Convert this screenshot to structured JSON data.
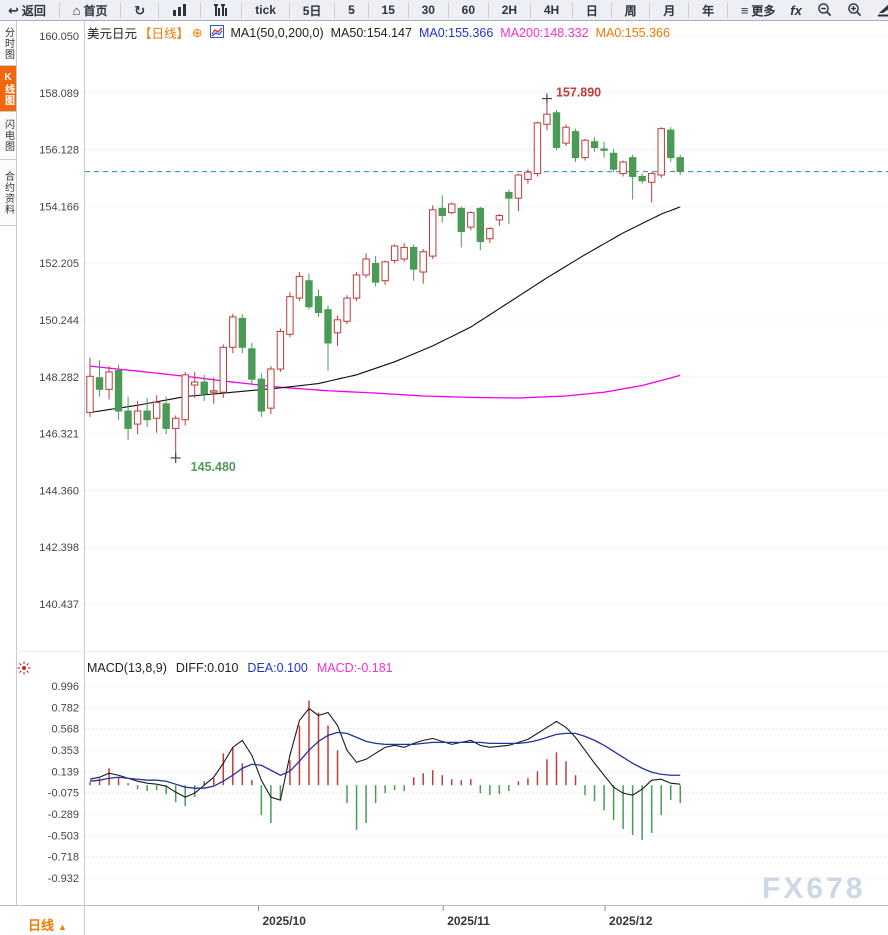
{
  "toolbar": {
    "back": "返回",
    "home": "首页",
    "periods": [
      "tick",
      "5日",
      "5",
      "15",
      "30",
      "60",
      "2H",
      "4H",
      "日",
      "周",
      "月",
      "年"
    ],
    "more": "更多",
    "fx": "fx"
  },
  "sidebar": {
    "tabs": [
      {
        "label": "分时图",
        "active": false
      },
      {
        "label": "K线图",
        "active": true
      },
      {
        "label": "闪电图",
        "active": false
      },
      {
        "label": "合约资料",
        "active": false
      }
    ]
  },
  "chart_header": {
    "symbol": "美元日元",
    "period_tag": "【日线】",
    "add_icon": "⊕",
    "ma_setting": "MA1(50,0,200,0)",
    "ma50": "MA50:154.147",
    "ma0_blue": "MA0:155.366",
    "ma200": "MA200:148.332",
    "ma0_orange": "MA0:155.366"
  },
  "macd_header": {
    "title": "MACD(13,8,9)",
    "diff": "DIFF:0.010",
    "dea": "DEA:0.100",
    "macd": "MACD:-0.181"
  },
  "bottom": {
    "period_label": "日线",
    "arrow": "▲"
  },
  "watermark": "FX678",
  "chart_data": {
    "type": "candlestick",
    "title": "美元日元 日线 (USD/JPY daily with MA50/MA200 and MACD)",
    "price_ticks": [
      "160.050",
      "158.089",
      "156.128",
      "154.166",
      "152.205",
      "150.244",
      "148.282",
      "146.321",
      "144.360",
      "142.398",
      "140.437"
    ],
    "macd_ticks": [
      "0.996",
      "0.782",
      "0.568",
      "0.353",
      "0.139",
      "-0.075",
      "-0.289",
      "-0.503",
      "-0.718",
      "-0.932"
    ],
    "x_ticks": [
      {
        "label": "2025/10",
        "index": 17.7
      },
      {
        "label": "2025/11",
        "index": 37.1
      },
      {
        "label": "2025/12",
        "index": 54.1
      }
    ],
    "current_price": 155.366,
    "high_annotation": {
      "label": "157.890",
      "price": 157.89,
      "index": 48
    },
    "low_annotation": {
      "label": "145.480",
      "price": 145.48,
      "index": 9
    },
    "candles": [
      [
        147.05,
        148.95,
        146.9,
        148.3
      ],
      [
        148.25,
        148.85,
        147.6,
        147.85
      ],
      [
        147.85,
        148.65,
        147.5,
        148.45
      ],
      [
        148.5,
        148.7,
        146.8,
        147.1
      ],
      [
        147.1,
        147.6,
        146.1,
        146.5
      ],
      [
        146.65,
        147.45,
        146.3,
        147.1
      ],
      [
        147.1,
        147.55,
        146.55,
        146.8
      ],
      [
        146.85,
        147.65,
        146.35,
        147.4
      ],
      [
        147.35,
        147.6,
        146.3,
        146.5
      ],
      [
        146.5,
        146.95,
        145.48,
        146.85
      ],
      [
        146.8,
        148.45,
        146.6,
        148.35
      ],
      [
        148.0,
        148.45,
        147.55,
        148.1
      ],
      [
        148.1,
        148.35,
        147.45,
        147.7
      ],
      [
        147.75,
        148.25,
        147.35,
        147.8
      ],
      [
        147.75,
        149.4,
        147.55,
        149.3
      ],
      [
        149.3,
        150.45,
        149.1,
        150.35
      ],
      [
        150.3,
        150.45,
        149.1,
        149.3
      ],
      [
        149.25,
        149.45,
        148.0,
        148.2
      ],
      [
        148.2,
        148.4,
        146.9,
        147.1
      ],
      [
        147.2,
        148.65,
        147.0,
        148.55
      ],
      [
        148.55,
        149.95,
        148.45,
        149.85
      ],
      [
        149.75,
        151.2,
        149.65,
        151.05
      ],
      [
        151.0,
        151.9,
        150.9,
        151.75
      ],
      [
        151.6,
        151.85,
        150.6,
        150.7
      ],
      [
        151.05,
        151.3,
        150.35,
        150.5
      ],
      [
        150.6,
        150.75,
        148.5,
        149.45
      ],
      [
        149.8,
        150.4,
        149.35,
        150.25
      ],
      [
        150.2,
        151.1,
        150.1,
        151.0
      ],
      [
        151.0,
        151.9,
        150.9,
        151.8
      ],
      [
        151.8,
        152.55,
        151.7,
        152.35
      ],
      [
        152.2,
        152.45,
        151.4,
        151.55
      ],
      [
        151.6,
        152.3,
        151.45,
        152.25
      ],
      [
        152.3,
        152.85,
        152.2,
        152.8
      ],
      [
        152.35,
        152.9,
        152.25,
        152.75
      ],
      [
        152.75,
        152.85,
        151.6,
        152.0
      ],
      [
        151.9,
        152.7,
        151.5,
        152.6
      ],
      [
        152.45,
        154.2,
        152.35,
        154.05
      ],
      [
        154.1,
        154.55,
        153.6,
        153.85
      ],
      [
        153.95,
        154.3,
        153.9,
        154.25
      ],
      [
        154.1,
        154.15,
        152.75,
        153.3
      ],
      [
        153.45,
        154.0,
        153.35,
        153.95
      ],
      [
        154.1,
        154.15,
        152.65,
        152.95
      ],
      [
        153.05,
        153.45,
        152.9,
        153.4
      ],
      [
        153.7,
        153.9,
        153.5,
        153.85
      ],
      [
        154.65,
        154.75,
        153.55,
        154.45
      ],
      [
        154.45,
        155.3,
        154.0,
        155.25
      ],
      [
        155.1,
        155.45,
        154.95,
        155.35
      ],
      [
        155.3,
        157.1,
        155.2,
        157.05
      ],
      [
        157.0,
        157.89,
        156.8,
        157.35
      ],
      [
        157.4,
        157.5,
        156.1,
        156.2
      ],
      [
        156.35,
        157.0,
        156.25,
        156.9
      ],
      [
        156.75,
        156.85,
        155.7,
        155.85
      ],
      [
        155.85,
        156.5,
        155.75,
        156.45
      ],
      [
        156.4,
        156.55,
        156.05,
        156.2
      ],
      [
        156.15,
        156.4,
        155.85,
        156.1
      ],
      [
        156.0,
        156.15,
        155.35,
        155.45
      ],
      [
        155.3,
        155.75,
        155.2,
        155.7
      ],
      [
        155.85,
        155.95,
        154.4,
        155.2
      ],
      [
        155.2,
        155.3,
        154.95,
        155.05
      ],
      [
        155.0,
        155.35,
        154.3,
        155.3
      ],
      [
        155.25,
        156.9,
        155.15,
        156.85
      ],
      [
        156.8,
        156.9,
        155.7,
        155.85
      ],
      [
        155.85,
        155.95,
        155.25,
        155.37
      ]
    ],
    "ma50": [
      [
        0,
        147.05
      ],
      [
        5,
        147.3
      ],
      [
        10,
        147.6
      ],
      [
        15,
        147.75
      ],
      [
        20,
        147.9
      ],
      [
        24,
        148.05
      ],
      [
        28,
        148.35
      ],
      [
        32,
        148.8
      ],
      [
        36,
        149.35
      ],
      [
        40,
        150.0
      ],
      [
        44,
        150.85
      ],
      [
        48,
        151.7
      ],
      [
        52,
        152.5
      ],
      [
        56,
        153.25
      ],
      [
        60,
        153.9
      ],
      [
        62,
        154.15
      ]
    ],
    "ma200": [
      [
        0,
        148.65
      ],
      [
        5,
        148.48
      ],
      [
        10,
        148.3
      ],
      [
        15,
        148.1
      ],
      [
        20,
        147.92
      ],
      [
        25,
        147.8
      ],
      [
        30,
        147.72
      ],
      [
        35,
        147.62
      ],
      [
        40,
        147.57
      ],
      [
        45,
        147.55
      ],
      [
        50,
        147.62
      ],
      [
        54,
        147.75
      ],
      [
        58,
        147.98
      ],
      [
        62,
        148.33
      ]
    ],
    "macd": {
      "diff": [
        0.06,
        0.08,
        0.12,
        0.1,
        0.07,
        0.04,
        0.02,
        0.01,
        -0.01,
        -0.07,
        -0.12,
        -0.08,
        0.0,
        0.08,
        0.22,
        0.38,
        0.45,
        0.3,
        0.05,
        -0.12,
        -0.15,
        0.3,
        0.65,
        0.77,
        0.7,
        0.73,
        0.6,
        0.35,
        0.23,
        0.26,
        0.32,
        0.38,
        0.4,
        0.38,
        0.42,
        0.45,
        0.47,
        0.44,
        0.41,
        0.43,
        0.45,
        0.4,
        0.38,
        0.39,
        0.4,
        0.43,
        0.46,
        0.52,
        0.58,
        0.64,
        0.58,
        0.48,
        0.35,
        0.22,
        0.1,
        -0.02,
        -0.08,
        -0.1,
        -0.04,
        0.05,
        0.06,
        0.02,
        0.01
      ],
      "dea": [
        0.04,
        0.05,
        0.07,
        0.08,
        0.07,
        0.06,
        0.05,
        0.05,
        0.04,
        0.01,
        -0.02,
        -0.03,
        -0.03,
        -0.01,
        0.04,
        0.1,
        0.17,
        0.21,
        0.2,
        0.15,
        0.1,
        0.14,
        0.24,
        0.35,
        0.44,
        0.5,
        0.53,
        0.52,
        0.48,
        0.44,
        0.42,
        0.41,
        0.41,
        0.41,
        0.41,
        0.42,
        0.43,
        0.43,
        0.43,
        0.43,
        0.43,
        0.43,
        0.42,
        0.42,
        0.42,
        0.42,
        0.43,
        0.45,
        0.48,
        0.51,
        0.52,
        0.52,
        0.49,
        0.45,
        0.4,
        0.34,
        0.28,
        0.22,
        0.17,
        0.13,
        0.11,
        0.1,
        0.1
      ],
      "hist": [
        0.03,
        0.07,
        0.17,
        0.08,
        0.02,
        -0.04,
        -0.06,
        -0.05,
        -0.09,
        -0.17,
        -0.21,
        -0.12,
        0.04,
        0.07,
        0.32,
        0.38,
        0.22,
        0.05,
        -0.3,
        -0.38,
        -0.15,
        0.25,
        0.6,
        0.85,
        0.73,
        0.6,
        0.35,
        -0.18,
        -0.45,
        -0.38,
        -0.18,
        -0.08,
        -0.05,
        -0.06,
        0.08,
        0.12,
        0.15,
        0.1,
        0.06,
        0.05,
        0.06,
        -0.08,
        -0.1,
        -0.09,
        -0.06,
        0.04,
        0.07,
        0.14,
        0.26,
        0.33,
        0.24,
        0.1,
        -0.1,
        -0.16,
        -0.25,
        -0.35,
        -0.44,
        -0.5,
        -0.55,
        -0.48,
        -0.3,
        -0.15,
        -0.18
      ]
    },
    "colors": {
      "up": "#c13b3b",
      "down": "#4a9b57",
      "ma50": "#0c0c0c",
      "ma200": "#f000f0",
      "diff": "#1a1a1a",
      "dea": "#20339e",
      "current_line": "#1f82d9",
      "high_text": "#c03a3a",
      "low_text": "#4e9b57",
      "accent_orange": "#f27a00"
    }
  }
}
